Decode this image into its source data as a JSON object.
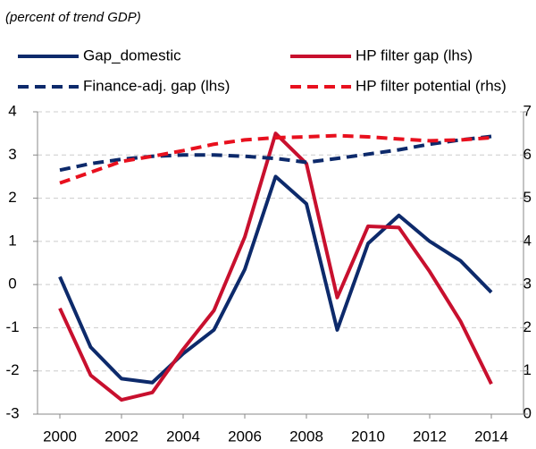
{
  "chart_data": {
    "type": "line",
    "subtitle": "(percent of trend GDP)",
    "x": [
      2000,
      2001,
      2002,
      2003,
      2004,
      2005,
      2006,
      2007,
      2008,
      2009,
      2010,
      2011,
      2012,
      2013,
      2014
    ],
    "xlim": [
      2000,
      2014
    ],
    "xticks": [
      2000,
      2002,
      2004,
      2006,
      2008,
      2010,
      2012,
      2014
    ],
    "ylim": [
      -3,
      4
    ],
    "yticks": [
      -3,
      -2,
      -1,
      0,
      1,
      2,
      3,
      4
    ],
    "y2lim": [
      0,
      7
    ],
    "y2ticks": [
      0,
      1,
      2,
      3,
      4,
      5,
      6,
      7
    ],
    "grid": true,
    "series": [
      {
        "name": "Gap_domestic",
        "color": "#0d2a6b",
        "dashed": false,
        "values": [
          0.18,
          -1.45,
          -2.18,
          -2.27,
          -1.6,
          -1.05,
          0.35,
          2.5,
          1.87,
          -1.05,
          0.95,
          1.6,
          1.0,
          0.55,
          -0.18
        ]
      },
      {
        "name": "HP filter gap (lhs)",
        "color": "#c8102e",
        "dashed": false,
        "values": [
          -0.55,
          -2.1,
          -2.67,
          -2.5,
          -1.5,
          -0.6,
          1.1,
          3.5,
          2.8,
          -0.3,
          1.35,
          1.32,
          0.3,
          -0.85,
          -2.3
        ]
      },
      {
        "name": "Finance-adj. gap (lhs)",
        "color": "#0d2a6b",
        "dashed": true,
        "values": [
          2.65,
          2.8,
          2.9,
          2.97,
          3.0,
          3.0,
          2.97,
          2.92,
          2.83,
          2.92,
          3.02,
          3.12,
          3.25,
          3.35,
          3.43
        ]
      },
      {
        "name": "HP filter potential (rhs)",
        "color": "#e8101e",
        "dashed": true,
        "axis": "y2",
        "values": [
          5.35,
          5.6,
          5.85,
          5.97,
          6.1,
          6.25,
          6.35,
          6.4,
          6.42,
          6.45,
          6.42,
          6.37,
          6.33,
          6.35,
          6.4
        ]
      }
    ]
  }
}
